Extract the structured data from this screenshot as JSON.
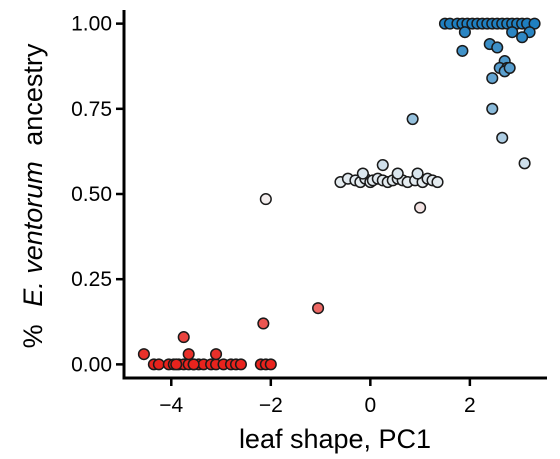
{
  "chart_data": {
    "type": "scatter",
    "title": "",
    "xlabel": "leaf shape, PC1",
    "ylabel": {
      "prefix": "%",
      "italic": "E. ventorum",
      "suffix": "ancestry"
    },
    "xlim": [
      -4.95,
      3.55
    ],
    "ylim": [
      -0.04,
      1.04
    ],
    "x_ticks": [
      -4,
      -2,
      0,
      2
    ],
    "x_tick_labels": [
      "−4",
      "−2",
      "0",
      "2"
    ],
    "y_ticks": [
      0,
      0.25,
      0.5,
      0.75,
      1
    ],
    "y_tick_labels": [
      "0.00",
      "0.25",
      "0.50",
      "0.75",
      "1.00"
    ],
    "grid": false,
    "legend": "none",
    "color_scale": {
      "low": "#e8231d",
      "mid": "#f4f4f4",
      "high": "#1f7fc0"
    },
    "points": [
      [
        -4.55,
        0.03
      ],
      [
        -4.35,
        0.0
      ],
      [
        -4.25,
        0.0
      ],
      [
        -4.05,
        0.0
      ],
      [
        -3.95,
        0.0
      ],
      [
        -3.85,
        0.0
      ],
      [
        -3.75,
        0.0
      ],
      [
        -3.65,
        0.0
      ],
      [
        -3.55,
        0.0
      ],
      [
        -3.45,
        0.0
      ],
      [
        -3.35,
        0.0
      ],
      [
        -3.2,
        0.0
      ],
      [
        -3.1,
        0.0
      ],
      [
        -2.95,
        0.0
      ],
      [
        -2.8,
        0.0
      ],
      [
        -2.7,
        0.0
      ],
      [
        -2.6,
        0.0
      ],
      [
        -2.2,
        0.0
      ],
      [
        -2.1,
        0.0
      ],
      [
        -2.0,
        0.0
      ],
      [
        -3.75,
        0.08
      ],
      [
        -3.65,
        0.03
      ],
      [
        -3.1,
        0.03
      ],
      [
        -3.9,
        0.0
      ],
      [
        -3.55,
        0.0
      ],
      [
        -2.15,
        0.12
      ],
      [
        -1.05,
        0.165
      ],
      [
        -2.1,
        0.485
      ],
      [
        -0.6,
        0.535
      ],
      [
        -0.45,
        0.545
      ],
      [
        -0.3,
        0.54
      ],
      [
        -0.2,
        0.535
      ],
      [
        -0.1,
        0.545
      ],
      [
        0.0,
        0.535
      ],
      [
        0.05,
        0.54
      ],
      [
        0.15,
        0.545
      ],
      [
        0.25,
        0.54
      ],
      [
        0.35,
        0.535
      ],
      [
        0.45,
        0.54
      ],
      [
        0.55,
        0.545
      ],
      [
        0.65,
        0.54
      ],
      [
        0.75,
        0.535
      ],
      [
        0.9,
        0.54
      ],
      [
        1.05,
        0.535
      ],
      [
        1.15,
        0.545
      ],
      [
        1.25,
        0.54
      ],
      [
        1.35,
        0.535
      ],
      [
        0.25,
        0.585
      ],
      [
        0.55,
        0.56
      ],
      [
        -0.15,
        0.56
      ],
      [
        0.95,
        0.56
      ],
      [
        1.0,
        0.46
      ],
      [
        0.85,
        0.72
      ],
      [
        1.5,
        1.0
      ],
      [
        1.6,
        1.0
      ],
      [
        1.75,
        1.0
      ],
      [
        1.85,
        1.0
      ],
      [
        1.95,
        1.0
      ],
      [
        2.05,
        1.0
      ],
      [
        2.15,
        1.0
      ],
      [
        2.25,
        1.0
      ],
      [
        2.35,
        1.0
      ],
      [
        2.45,
        1.0
      ],
      [
        2.55,
        1.0
      ],
      [
        2.65,
        1.0
      ],
      [
        2.75,
        1.0
      ],
      [
        2.85,
        1.0
      ],
      [
        2.95,
        1.0
      ],
      [
        3.05,
        1.0
      ],
      [
        3.15,
        1.0
      ],
      [
        3.3,
        1.0
      ],
      [
        1.9,
        0.975
      ],
      [
        2.85,
        0.975
      ],
      [
        3.2,
        0.975
      ],
      [
        3.05,
        0.96
      ],
      [
        1.85,
        0.92
      ],
      [
        2.4,
        0.94
      ],
      [
        2.55,
        0.93
      ],
      [
        2.7,
        0.89
      ],
      [
        2.6,
        0.87
      ],
      [
        2.75,
        0.87
      ],
      [
        2.45,
        0.84
      ],
      [
        2.7,
        0.86
      ],
      [
        2.8,
        0.87
      ],
      [
        2.45,
        0.75
      ],
      [
        2.65,
        0.665
      ],
      [
        3.1,
        0.59
      ]
    ]
  }
}
